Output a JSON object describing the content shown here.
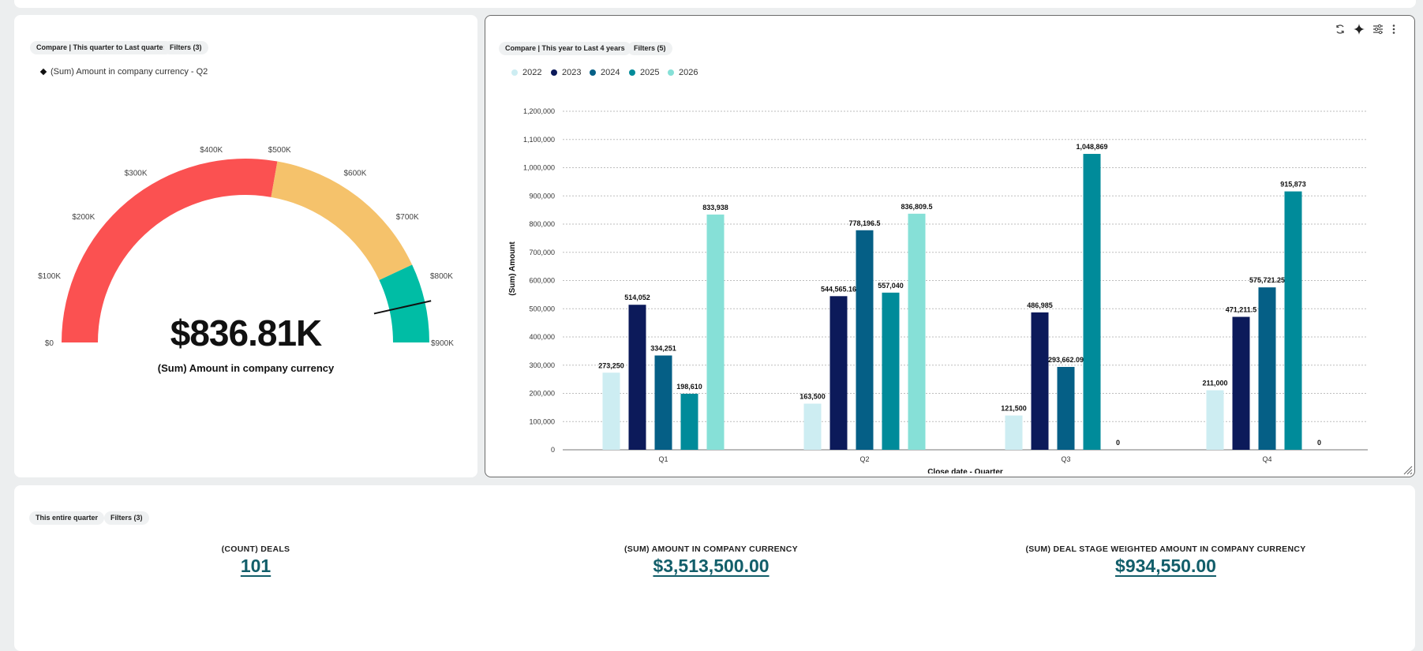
{
  "gauge": {
    "chip_compare": "Compare | This quarter to Last quarter",
    "chip_filters": "Filters (3)",
    "legend": "(Sum) Amount in company currency - Q2",
    "value_display": "$836.81K",
    "caption": "(Sum) Amount in company currency",
    "value": 836809.5,
    "min": 0,
    "max": 900000,
    "ticks": [
      "$0",
      "$100K",
      "$200K",
      "$300K",
      "$400K",
      "$500K",
      "$600K",
      "$700K",
      "$800K",
      "$900K"
    ],
    "bands": [
      {
        "from": 0,
        "to": 500000,
        "color": "#fb5151"
      },
      {
        "from": 500000,
        "to": 775000,
        "color": "#f5c26b"
      },
      {
        "from": 775000,
        "to": 900000,
        "color": "#00bda5"
      }
    ]
  },
  "barchart": {
    "chip_compare": "Compare | This year to Last 4 years",
    "chip_filters": "Filters (5)",
    "toolbar_icons": [
      "refresh-icon",
      "sparkle-icon",
      "sliders-icon",
      "more-icon"
    ]
  },
  "chart_data": {
    "type": "bar",
    "categories": [
      "Q1",
      "Q2",
      "Q3",
      "Q4"
    ],
    "xlabel": "Close date - Quarter",
    "ylabel": "(Sum) Amount",
    "ylim": [
      0,
      1200000
    ],
    "yticks": [
      0,
      100000,
      200000,
      300000,
      400000,
      500000,
      600000,
      700000,
      800000,
      900000,
      1000000,
      1100000,
      1200000
    ],
    "ytick_labels": [
      "0",
      "100,000",
      "200,000",
      "300,000",
      "400,000",
      "500,000",
      "600,000",
      "700,000",
      "800,000",
      "900,000",
      "1,000,000",
      "1,100,000",
      "1,200,000"
    ],
    "grid": true,
    "legend_position": "top-left",
    "series": [
      {
        "name": "2022",
        "color": "#cdedf2",
        "values": [
          273250,
          163500,
          121500,
          211000
        ],
        "labels": [
          "273,250",
          "163,500",
          "121,500",
          "211,000"
        ]
      },
      {
        "name": "2023",
        "color": "#0c1a5a",
        "values": [
          514052,
          544565.16,
          486985,
          471211.5
        ],
        "labels": [
          "514,052",
          "544,565.16",
          "486,985",
          "471,211.5"
        ]
      },
      {
        "name": "2024",
        "color": "#055f86",
        "values": [
          334251,
          778196.5,
          293662.09,
          575721.25
        ],
        "labels": [
          "334,251",
          "778,196.5",
          "293,662.09",
          "575,721.25"
        ]
      },
      {
        "name": "2025",
        "color": "#008b9a",
        "values": [
          198610,
          557040,
          1048869,
          915873
        ],
        "labels": [
          "198,610",
          "557,040",
          "1,048,869",
          "915,873"
        ]
      },
      {
        "name": "2026",
        "color": "#86e0d7",
        "values": [
          833938,
          836809.5,
          0,
          0
        ],
        "labels": [
          "833,938",
          "836,809.5",
          "0",
          "0"
        ]
      }
    ]
  },
  "kpis": {
    "chip_range": "This entire quarter",
    "chip_filters": "Filters (3)",
    "items": [
      {
        "label": "(COUNT) DEALS",
        "value": "101"
      },
      {
        "label": "(SUM) AMOUNT IN COMPANY CURRENCY",
        "value": "$3,513,500.00"
      },
      {
        "label": "(SUM) DEAL STAGE WEIGHTED AMOUNT IN COMPANY CURRENCY",
        "value": "$934,550.00"
      }
    ]
  }
}
